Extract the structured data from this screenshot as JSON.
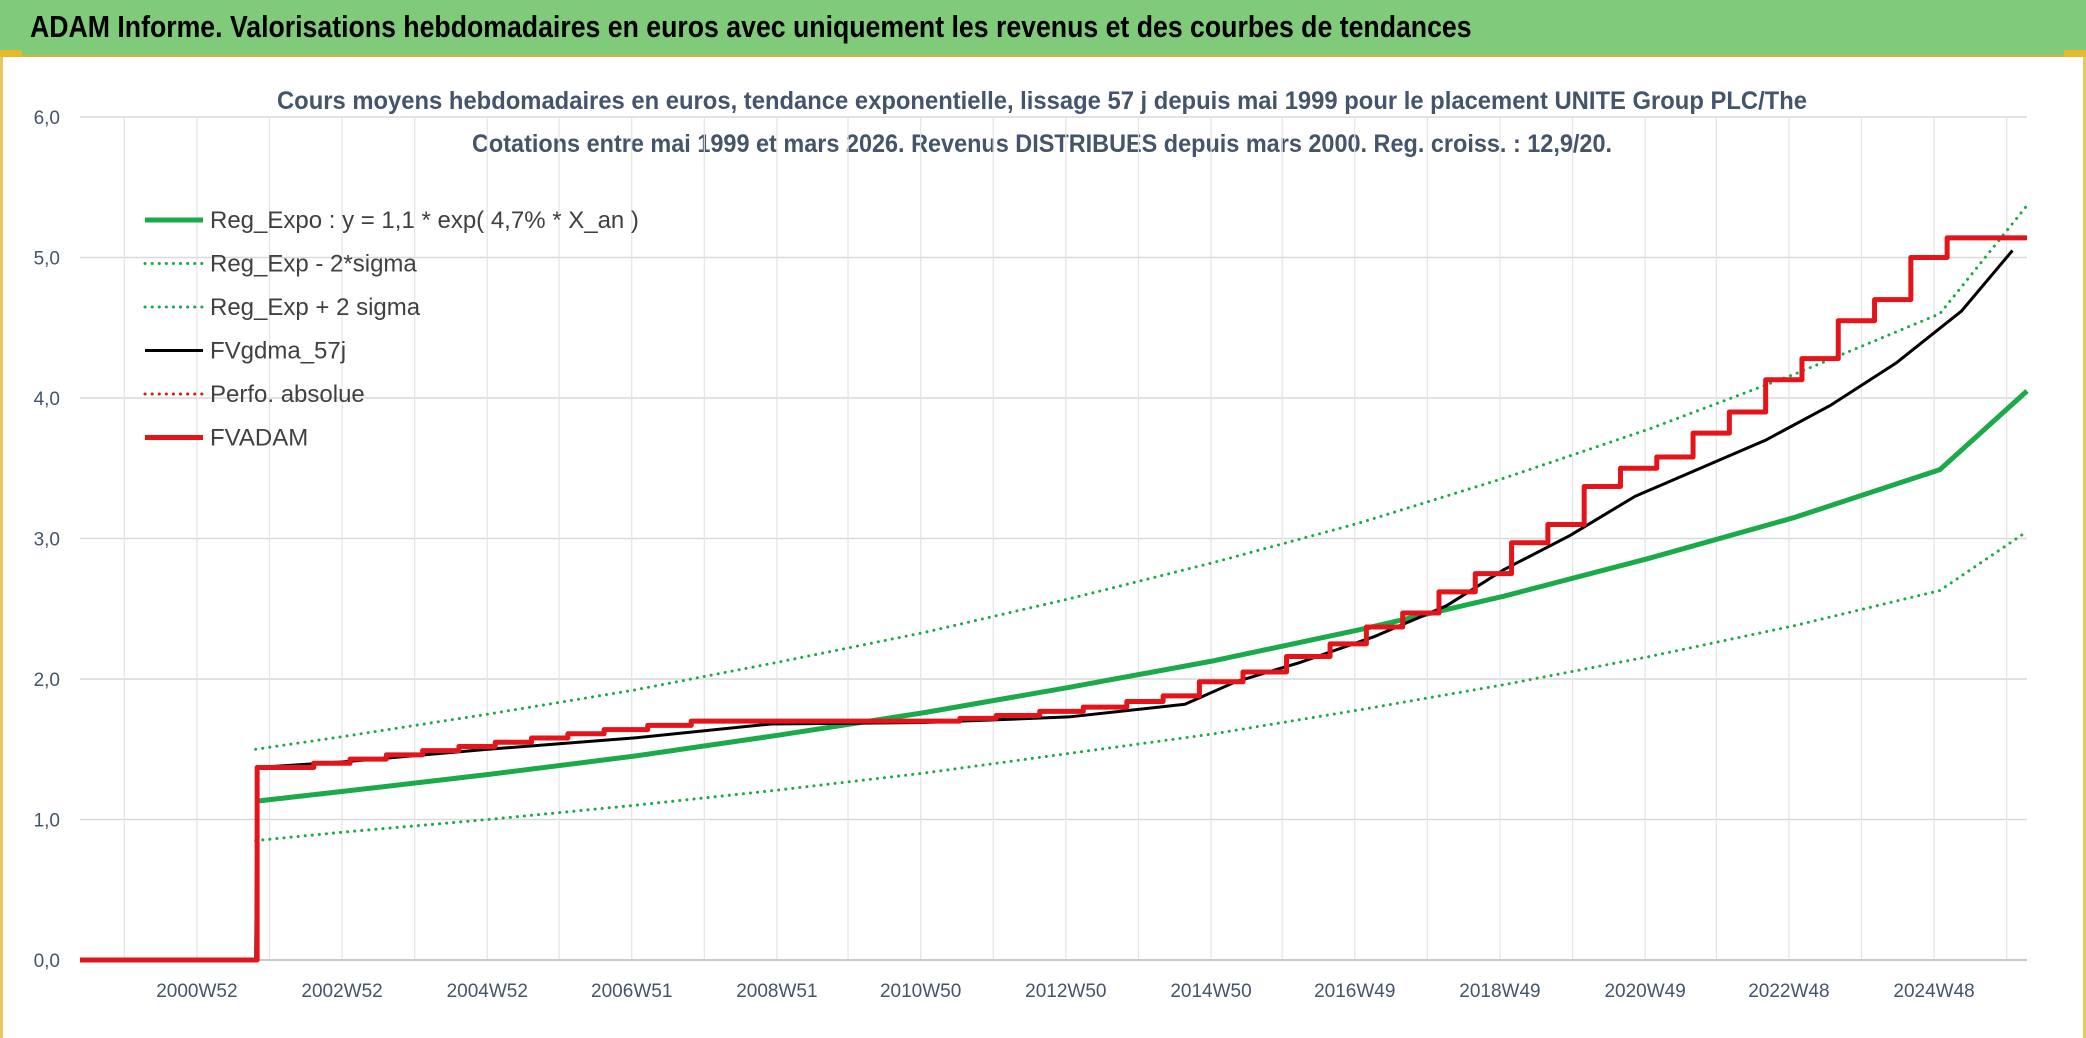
{
  "banner": {
    "title": "ADAM Informe. Valorisations hebdomadaires en euros avec uniquement les revenus et des courbes de tendances"
  },
  "chart_data": {
    "type": "line",
    "title_line1": "Cours moyens hebdomadaires en euros, tendance exponentielle, lissage 57 j depuis mai 1999 pour le placement UNITE Group PLC/The",
    "title_line2": "Cotations entre mai 1999 et mars 2026. Revenus DISTRIBUES depuis mars 2000. Reg. croiss. : 12,9/20.",
    "x_range": [
      1999.38,
      2026.2
    ],
    "ylim": [
      0,
      6
    ],
    "y_ticks": [
      0,
      1,
      2,
      3,
      4,
      5,
      6
    ],
    "y_tick_labels": [
      "0,0",
      "1,0",
      "2,0",
      "3,0",
      "4,0",
      "5,0",
      "6,0"
    ],
    "x_ticks": [
      {
        "label": "2000W52",
        "x": 2000.99
      },
      {
        "label": "2002W52",
        "x": 2002.99
      },
      {
        "label": "2004W52",
        "x": 2004.99
      },
      {
        "label": "2006W51",
        "x": 2006.98
      },
      {
        "label": "2008W51",
        "x": 2008.98
      },
      {
        "label": "2010W50",
        "x": 2010.96
      },
      {
        "label": "2012W50",
        "x": 2012.96
      },
      {
        "label": "2014W50",
        "x": 2014.96
      },
      {
        "label": "2016W49",
        "x": 2016.94
      },
      {
        "label": "2018W49",
        "x": 2018.94
      },
      {
        "label": "2020W49",
        "x": 2020.94
      },
      {
        "label": "2022W48",
        "x": 2022.92
      },
      {
        "label": "2024W48",
        "x": 2024.92
      }
    ],
    "grid": true,
    "legend_position": "top-left",
    "series": [
      {
        "name": "Reg_Expo : y = 1,1 * exp( 4,7% *  X_an )",
        "color": "#1aaa4a",
        "style": "solid",
        "width": 5,
        "x": [
          2001.8,
          2003,
          2005,
          2007,
          2009,
          2011,
          2013,
          2015,
          2017,
          2019,
          2021,
          2023,
          2025,
          2026.2
        ],
        "y": [
          1.13,
          1.2,
          1.32,
          1.45,
          1.6,
          1.76,
          1.94,
          2.13,
          2.35,
          2.59,
          2.86,
          3.15,
          3.49,
          4.05
        ]
      },
      {
        "name": "Reg_Exp - 2*sigma",
        "color": "#1aaa4a",
        "style": "dotted",
        "width": 3,
        "x": [
          2001.8,
          2003,
          2005,
          2007,
          2009,
          2011,
          2013,
          2015,
          2017,
          2019,
          2021,
          2023,
          2025,
          2026.2
        ],
        "y": [
          0.85,
          0.91,
          1.0,
          1.1,
          1.21,
          1.33,
          1.47,
          1.61,
          1.78,
          1.96,
          2.16,
          2.38,
          2.63,
          3.05
        ]
      },
      {
        "name": "Reg_Exp + 2 sigma",
        "color": "#1aaa4a",
        "style": "dotted",
        "width": 3,
        "x": [
          2001.8,
          2003,
          2005,
          2007,
          2009,
          2011,
          2013,
          2015,
          2017,
          2019,
          2021,
          2023,
          2025,
          2026.2
        ],
        "y": [
          1.5,
          1.59,
          1.75,
          1.92,
          2.12,
          2.33,
          2.57,
          2.83,
          3.11,
          3.43,
          3.78,
          4.17,
          4.6,
          5.37
        ]
      },
      {
        "name": "FVgdma_57j",
        "color": "#000000",
        "style": "solid",
        "width": 3,
        "x": [
          1999.38,
          2001.8,
          2001.82,
          2003,
          2005,
          2007,
          2008.9,
          2011,
          2013,
          2014.6,
          2015.3,
          2016.2,
          2017.2,
          2018.2,
          2019.0,
          2019.9,
          2020.8,
          2021.7,
          2022.6,
          2023.5,
          2024.4,
          2025.3,
          2026.0
        ],
        "y": [
          0,
          0,
          1.37,
          1.41,
          1.5,
          1.58,
          1.68,
          1.69,
          1.73,
          1.82,
          1.98,
          2.12,
          2.3,
          2.52,
          2.78,
          3.02,
          3.3,
          3.5,
          3.7,
          3.95,
          4.25,
          4.62,
          5.05
        ]
      },
      {
        "name": "Perfo. absolue",
        "color": "#e4141b",
        "style": "dotted",
        "width": 3,
        "x": [],
        "y": []
      },
      {
        "name": "FVADAM",
        "color": "#e4141b",
        "style": "step",
        "width": 5,
        "x": [
          1999.38,
          2001.8,
          2001.82,
          2002.6,
          2003.1,
          2003.6,
          2004.1,
          2004.6,
          2005.1,
          2005.6,
          2006.1,
          2006.6,
          2007.2,
          2007.8,
          2011.5,
          2012.0,
          2012.6,
          2013.2,
          2013.8,
          2014.3,
          2014.8,
          2015.4,
          2016.0,
          2016.6,
          2017.1,
          2017.6,
          2018.1,
          2018.6,
          2019.1,
          2019.6,
          2020.1,
          2020.6,
          2021.1,
          2021.6,
          2022.1,
          2022.6,
          2023.1,
          2023.6,
          2024.1,
          2024.6,
          2025.1,
          2025.6,
          2026.2
        ],
        "y": [
          0,
          0,
          1.37,
          1.4,
          1.43,
          1.46,
          1.49,
          1.52,
          1.55,
          1.58,
          1.61,
          1.64,
          1.67,
          1.7,
          1.72,
          1.74,
          1.77,
          1.8,
          1.84,
          1.88,
          1.98,
          2.05,
          2.16,
          2.25,
          2.37,
          2.47,
          2.62,
          2.75,
          2.97,
          3.1,
          3.37,
          3.5,
          3.58,
          3.75,
          3.9,
          4.13,
          4.28,
          4.55,
          4.7,
          5.0,
          5.14,
          5.14,
          5.14
        ]
      }
    ]
  }
}
